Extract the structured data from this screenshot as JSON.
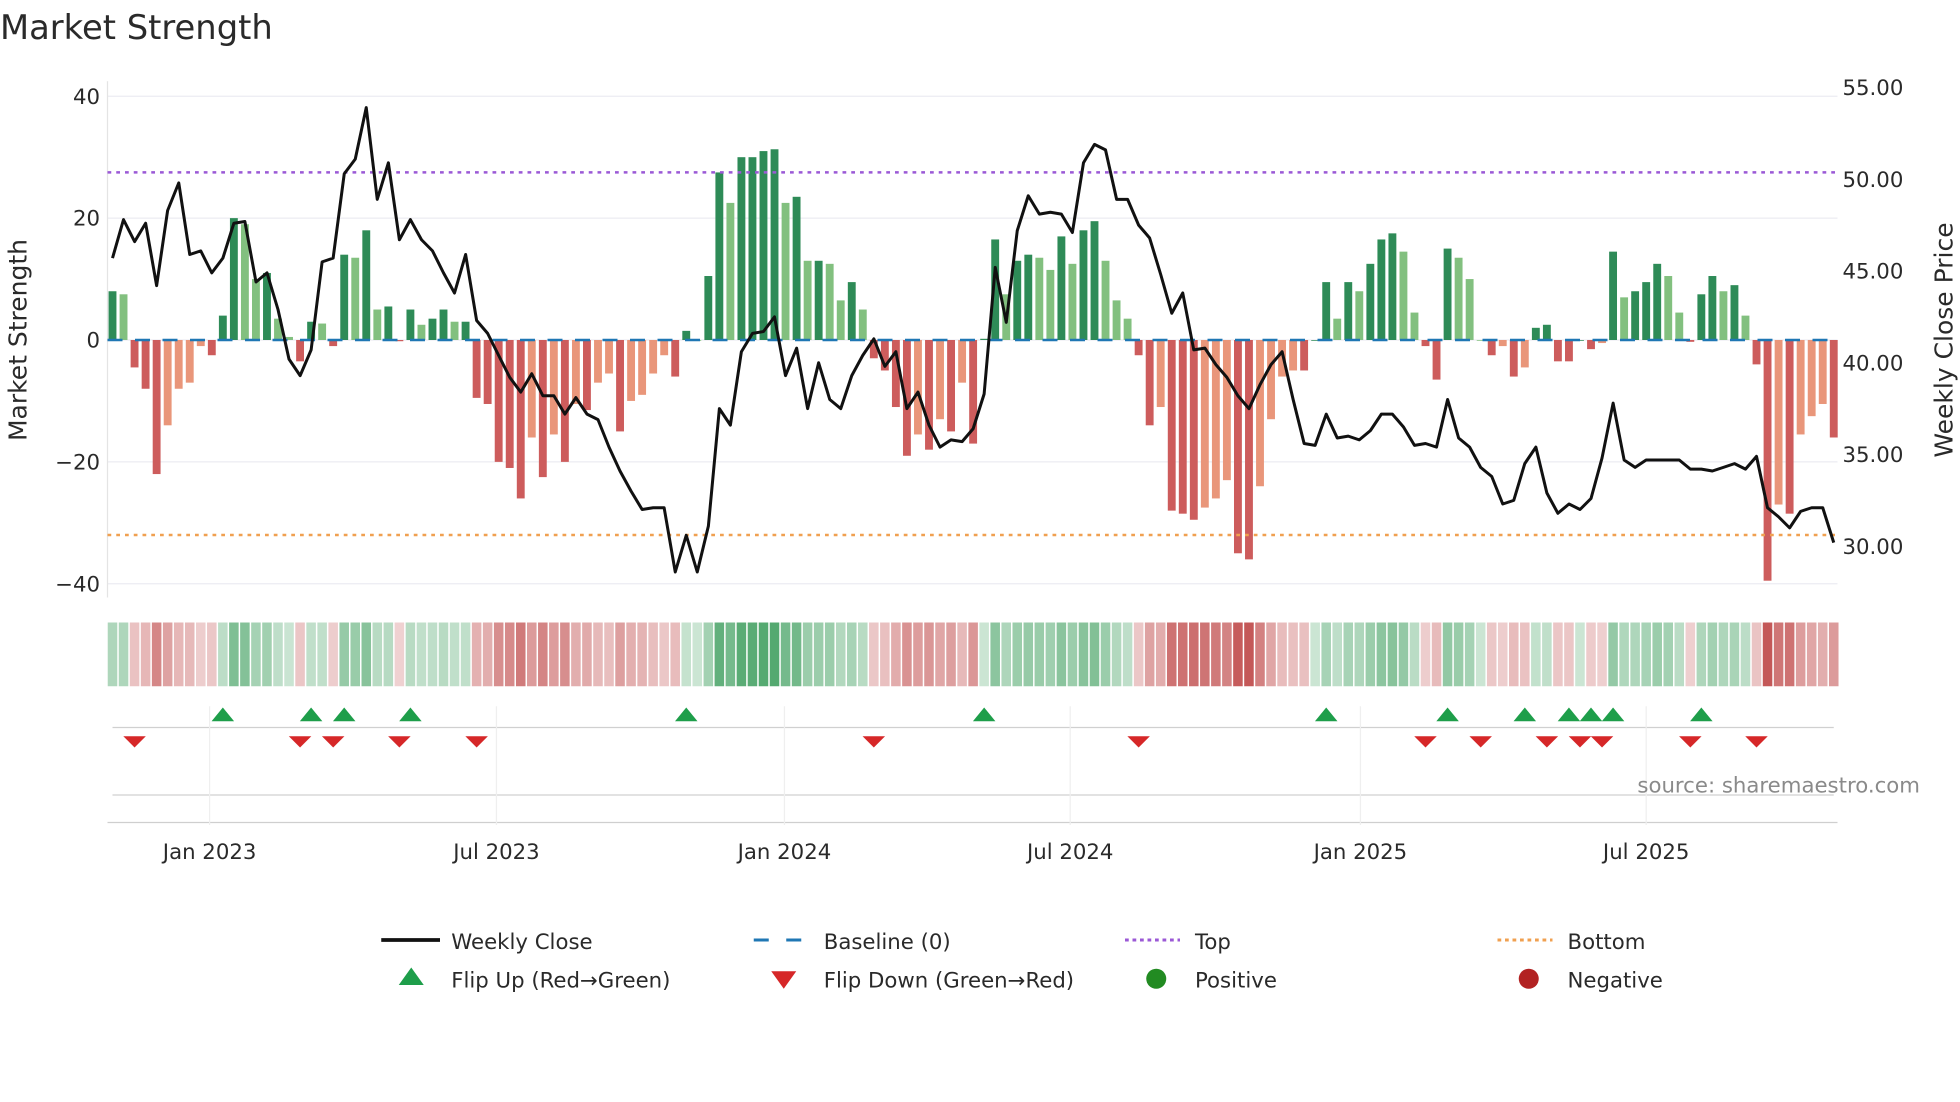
{
  "chart_data": {
    "type": "bar",
    "title": "Market Strength",
    "ylabel": "Market Strength",
    "y2label": "Weekly Close Price",
    "ylim": [
      -42,
      42
    ],
    "y2lim": [
      28,
      55.5
    ],
    "yticks": [
      "40",
      "20",
      "0",
      "−20",
      "−40"
    ],
    "ytick_values": [
      40,
      20,
      0,
      -20,
      -40
    ],
    "y2ticks": [
      "55.00",
      "50.00",
      "45.00",
      "40.00",
      "35.00",
      "30.00"
    ],
    "y2tick_values": [
      55,
      50,
      45,
      40,
      35,
      30
    ],
    "xticks": [
      {
        "label": "Jan 2023",
        "week_index": 8.8
      },
      {
        "label": "Jul 2023",
        "week_index": 34.8
      },
      {
        "label": "Jan 2024",
        "week_index": 60.9
      },
      {
        "label": "Jul 2024",
        "week_index": 86.8
      },
      {
        "label": "Jan 2025",
        "week_index": 113.1
      },
      {
        "label": "Jul 2025",
        "week_index": 139.0
      }
    ],
    "top_level": 27.5,
    "bottom_level": -32,
    "strength": [
      8,
      7.5,
      -4.5,
      -8,
      -22,
      -14,
      -8,
      -7,
      -1,
      -2.5,
      4,
      20,
      19,
      10,
      11,
      3.5,
      0.5,
      -3.5,
      3,
      2.7,
      -1,
      14,
      13.5,
      18,
      5,
      5.5,
      -0.2,
      5,
      2.5,
      3.5,
      5,
      3,
      3,
      -9.5,
      -10.5,
      -20,
      -21,
      -26,
      -16,
      -22.5,
      -15.5,
      -20,
      -10.5,
      -11.5,
      -7,
      -5.5,
      -15,
      -10,
      -9,
      -5.5,
      -2.5,
      -6,
      1.5,
      0,
      10.5,
      27.5,
      22.5,
      30,
      30,
      31,
      31.3,
      22.5,
      23.5,
      13,
      13,
      12.5,
      6.5,
      9.5,
      5,
      -3,
      -5,
      -11,
      -19,
      -15.5,
      -18,
      -13,
      -15,
      -7,
      -17,
      0.2,
      16.5,
      7.5,
      13,
      14,
      13.5,
      11.5,
      17,
      12.5,
      18,
      19.5,
      13,
      6.5,
      3.5,
      -2.5,
      -14,
      -11,
      -28,
      -28.5,
      -29.5,
      -27.5,
      -26,
      -23,
      -35,
      -36,
      -24,
      -13,
      -6,
      -5,
      -5,
      0,
      9.5,
      3.5,
      9.5,
      8,
      12.5,
      16.5,
      17.5,
      14.5,
      4.5,
      -1,
      -6.5,
      15,
      13.5,
      10,
      0,
      -2.5,
      -1,
      -6,
      -4.5,
      2,
      2.5,
      -3.5,
      -3.5,
      0,
      -1.5,
      -0.5,
      14.5,
      7,
      8,
      9.5,
      12.5,
      10.5,
      4.5,
      -0.3,
      7.5,
      10.5,
      8,
      9,
      4,
      -4,
      -39.5,
      -27,
      -28.5,
      -15.5,
      -12.5,
      -10.5,
      -16
    ],
    "weekly_close": [
      45.7,
      47.8,
      46.6,
      47.6,
      44.2,
      48.3,
      49.8,
      45.9,
      46.1,
      44.9,
      45.7,
      47.6,
      47.7,
      44.4,
      44.9,
      42.9,
      40.2,
      39.3,
      40.7,
      45.5,
      45.7,
      50.3,
      51.1,
      53.9,
      48.9,
      50.9,
      46.7,
      47.8,
      46.7,
      46.1,
      44.9,
      43.8,
      45.9,
      42.3,
      41.6,
      40.4,
      39.2,
      38.4,
      39.4,
      38.2,
      38.2,
      37.2,
      38.1,
      37.2,
      36.9,
      35.4,
      34.1,
      33.0,
      32.0,
      32.1,
      32.1,
      28.6,
      30.6,
      28.6,
      31.1,
      37.5,
      36.6,
      40.6,
      41.6,
      41.7,
      42.5,
      39.3,
      40.8,
      37.5,
      40.0,
      38.0,
      37.5,
      39.3,
      40.4,
      41.3,
      39.8,
      40.6,
      37.5,
      38.4,
      36.6,
      35.4,
      35.8,
      35.7,
      36.4,
      38.3,
      45.2,
      42.2,
      47.2,
      49.1,
      48.1,
      48.2,
      48.1,
      47.1,
      50.9,
      51.9,
      51.6,
      48.9,
      48.9,
      47.5,
      46.8,
      44.8,
      42.7,
      43.8,
      40.7,
      40.8,
      39.9,
      39.2,
      38.2,
      37.5,
      38.8,
      39.9,
      40.6,
      38.0,
      35.6,
      35.5,
      37.2,
      35.9,
      36.0,
      35.8,
      36.3,
      37.2,
      37.2,
      36.5,
      35.5,
      35.6,
      35.4,
      38.0,
      35.9,
      35.4,
      34.3,
      33.8,
      32.3,
      32.5,
      34.5,
      35.4,
      32.9,
      31.8,
      32.3,
      32.0,
      32.6,
      34.8,
      37.8,
      34.7,
      34.3,
      34.7,
      34.7,
      34.7,
      34.7,
      34.2,
      34.2,
      34.1,
      34.3,
      34.5,
      34.2,
      34.9,
      32.1,
      31.6,
      31.0,
      31.9,
      32.1,
      32.1,
      30.2
    ],
    "flip_up_weeks": [
      10,
      18,
      21,
      27,
      52,
      79,
      110,
      121,
      128,
      132,
      134,
      136,
      144
    ],
    "flip_down_weeks": [
      2,
      17,
      20,
      26,
      33,
      69,
      93,
      119,
      124,
      130,
      133,
      135,
      143,
      149
    ],
    "legend": [
      {
        "label": "Weekly Close",
        "symbol": "line"
      },
      {
        "label": "Baseline (0)",
        "symbol": "dash"
      },
      {
        "label": "Top",
        "symbol": "dot-purple"
      },
      {
        "label": "Bottom",
        "symbol": "dot-orange"
      },
      {
        "label": "Flip Up (Red→Green)",
        "symbol": "tri-up"
      },
      {
        "label": "Flip Down (Green→Red)",
        "symbol": "tri-down"
      },
      {
        "label": "Positive",
        "symbol": "circle-green"
      },
      {
        "label": "Negative",
        "symbol": "circle-red"
      }
    ],
    "legend_position": "bottom",
    "source": "source: sharemaestro.com"
  },
  "colors": {
    "pos_strong": "#2e8b57",
    "pos_weak": "#82c07f",
    "neg_strong": "#cd5c5c",
    "neg_weak": "#e9967a",
    "baseline": "#1f77b4",
    "top": "#9b59d6",
    "bottom": "#f0a050",
    "flip_up": "#1e9e4a",
    "flip_down": "#d62728",
    "positive": "#228b22",
    "negative": "#b22222",
    "line": "#111111"
  }
}
